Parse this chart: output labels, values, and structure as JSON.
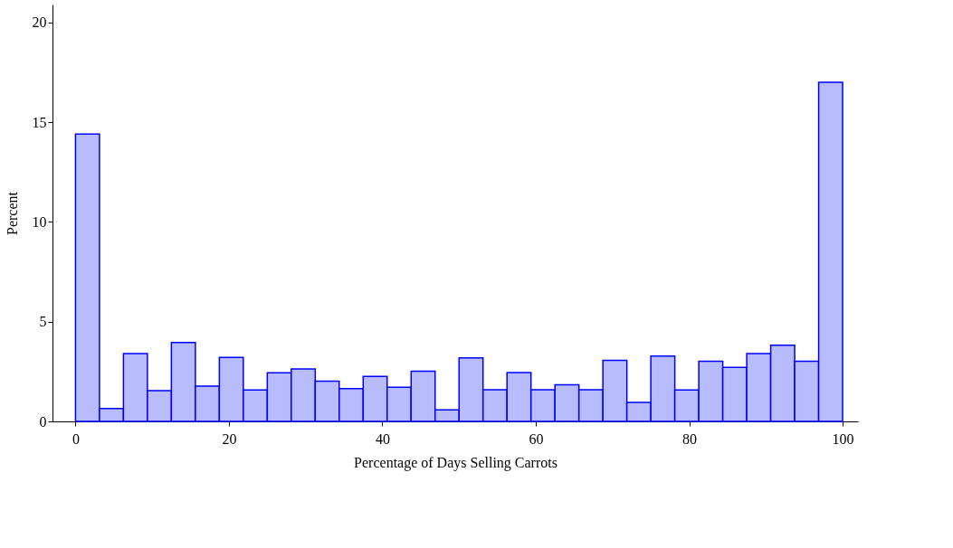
{
  "chart_data": {
    "type": "histogram",
    "xlabel": "Percentage of Days Selling Carrots",
    "ylabel": "Percent",
    "color": "#b8bbfc",
    "bins": [
      0,
      3.125,
      6.25,
      9.375,
      12.5,
      15.625,
      18.75,
      21.875,
      25,
      28.125,
      31.25,
      34.375,
      37.5,
      40.625,
      43.75,
      46.875,
      50,
      53.125,
      56.25,
      59.375,
      62.5,
      65.625,
      68.75,
      71.875,
      75,
      78.125,
      81.25,
      84.375,
      87.5,
      90.625,
      93.75,
      96.875,
      100
    ],
    "values": [
      14.4,
      0.65,
      3.4,
      1.54,
      3.96,
      1.77,
      3.21,
      1.58,
      2.44,
      2.63,
      2.02,
      1.64,
      2.26,
      1.71,
      2.52,
      0.58,
      3.19,
      1.59,
      2.45,
      1.59,
      1.84,
      1.59,
      3.06,
      0.95,
      3.27,
      1.58,
      3.02,
      2.71,
      3.4,
      3.82,
      3.02,
      17.0
    ],
    "xlim": [
      -3,
      102
    ],
    "xticks": [
      0,
      20,
      40,
      60,
      80,
      100
    ],
    "ylim": [
      0,
      20.9
    ],
    "yticks": [
      0,
      5,
      10,
      15,
      20
    ],
    "grid": false
  }
}
